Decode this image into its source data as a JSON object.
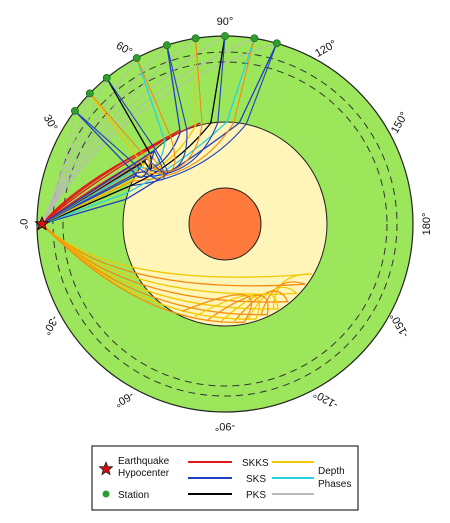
{
  "angle_labels": [
    "90°",
    "120°",
    "150°",
    "180°",
    "-150°",
    "-120°",
    "-90°",
    "-60°",
    "-30°",
    "0°",
    "30°",
    "60°"
  ],
  "colors": {
    "mantle": "#9ce65c",
    "outer_core": "#fff5b8",
    "inner_core": "#ff7a3c",
    "SKKS": "#e31a1c",
    "SKS": "#1f3fbf",
    "PKS": "#000000",
    "depth_yellow": "#f2c800",
    "depth_orange": "#f58a10",
    "depth_cyan": "#27d3e0",
    "depth_gray": "#b9b9b9",
    "station": "#2e9e2e",
    "hypocenter": "#cc1111"
  },
  "legend": {
    "hypocenter_line1": "Earthquake",
    "hypocenter_line2": "Hypocenter",
    "station": "Station",
    "skks": "SKKS",
    "sks": "SKS",
    "pks": "PKS",
    "depth_line1": "Depth",
    "depth_line2": "Phases"
  },
  "stations_deg": [
    106,
    99,
    90,
    81,
    72,
    62,
    51,
    44,
    37
  ],
  "hypocenter_deg": 0
}
